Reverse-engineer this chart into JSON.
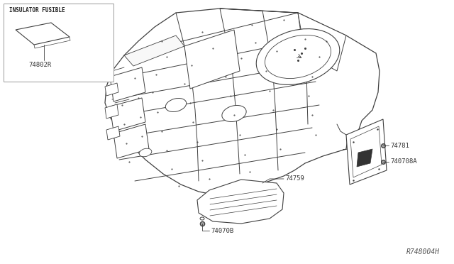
{
  "bg_color": "#ffffff",
  "line_color": "#404040",
  "text_color": "#333333",
  "diagram_id": "R748004H",
  "inset_label": "INSULATOR FUSIBLE",
  "part_74802R": "74802R",
  "part_74781": "74781",
  "part_740708A": "740708A",
  "part_74759": "74759",
  "part_74070B": "74070B",
  "lw_main": 0.8,
  "lw_thin": 0.5
}
